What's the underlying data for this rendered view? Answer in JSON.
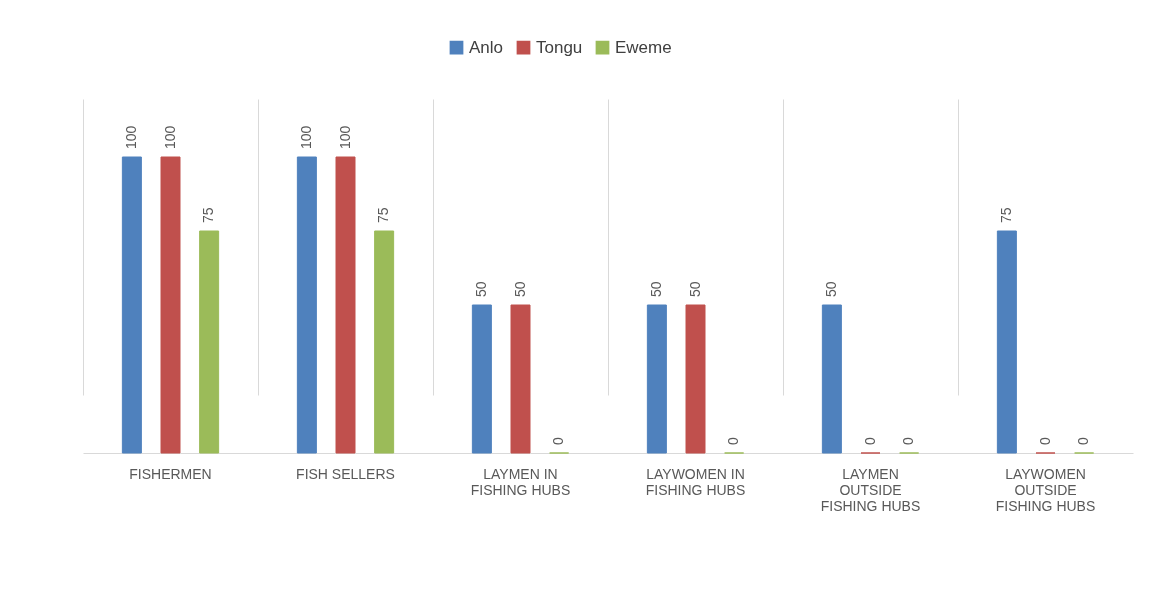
{
  "chart_data": {
    "type": "bar",
    "categories": [
      "FISHERMEN",
      "FISH SELLERS",
      "LAYMEN IN FISHING HUBS",
      "LAYWOMEN IN FISHING HUBS",
      "LAYMEN OUTSIDE FISHING HUBS",
      "LAYWOMEN OUTSIDE FISHING HUBS"
    ],
    "series": [
      {
        "name": "Anlo",
        "color": "#4f81bd",
        "values": [
          100,
          100,
          50,
          50,
          50,
          75
        ]
      },
      {
        "name": "Tongu",
        "color": "#c0504d",
        "values": [
          100,
          100,
          50,
          50,
          0,
          0
        ]
      },
      {
        "name": "Eweme",
        "color": "#9bbb59",
        "values": [
          75,
          75,
          0,
          0,
          0,
          0
        ]
      }
    ],
    "data_labels": true,
    "grid": "x",
    "legend": "top"
  }
}
